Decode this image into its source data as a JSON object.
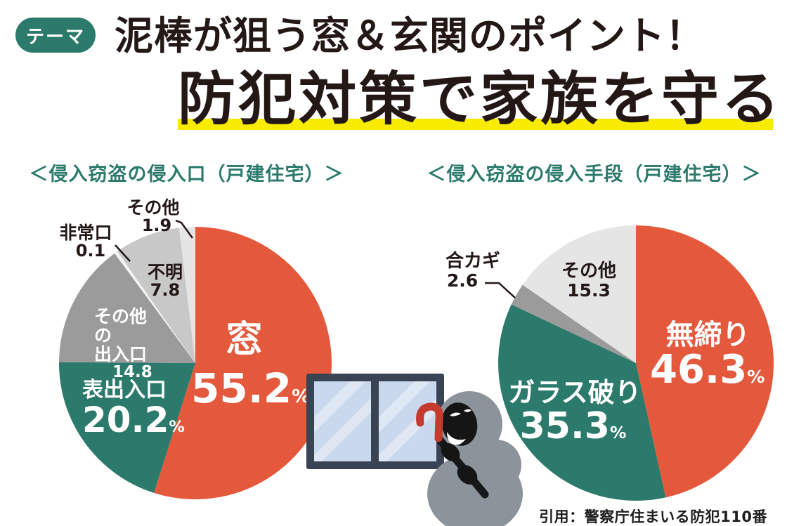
{
  "badge": {
    "label": "テーマ"
  },
  "title": {
    "line1": "泥棒が狙う窓＆玄関のポイント！",
    "line2": "防犯対策で家族を守る"
  },
  "ui": {
    "percent_sign": "%"
  },
  "colors": {
    "accent_teal": "#2B7A6C",
    "accent_red": "#E4583C",
    "gray_medium": "#9B9B9C",
    "gray_light": "#C8C8C9",
    "gray_pale": "#E5E5E6",
    "sliver_white": "#F2F2F2",
    "underline_yellow": "#F7EC00",
    "ink": "#231815"
  },
  "chart_data": [
    {
      "type": "pie",
      "heading": "＜侵入窃盗の侵入口（戸建住宅）＞",
      "title": "侵入窃盗の侵入口（戸建住宅）",
      "unit": "percent",
      "start_angle": "12-oclock",
      "direction": "clockwise",
      "slices": [
        {
          "label": "窓",
          "value": 55.2,
          "color": "#E4583C"
        },
        {
          "label": "表出入口",
          "value": 20.2,
          "color": "#2B7A6C"
        },
        {
          "label": "その他の出入口",
          "label_lines": [
            "その他の",
            "出入口"
          ],
          "value": 14.8,
          "color": "#9B9B9C"
        },
        {
          "label": "非常口",
          "value": 0.1,
          "color": "#F2F2F2"
        },
        {
          "label": "不明",
          "value": 7.8,
          "color": "#C8C8C9"
        },
        {
          "label": "その他",
          "value": 1.9,
          "color": "#E5E5E6"
        }
      ]
    },
    {
      "type": "pie",
      "heading": "＜侵入窃盗の侵入手段（戸建住宅）＞",
      "title": "侵入窃盗の侵入手段（戸建住宅）",
      "unit": "percent",
      "start_angle": "12-oclock",
      "direction": "clockwise",
      "slices": [
        {
          "label": "無締り",
          "value": 46.3,
          "color": "#E4583C"
        },
        {
          "label": "ガラス破り",
          "value": 35.3,
          "color": "#2B7A6C"
        },
        {
          "label": "合カギ",
          "value": 2.6,
          "color": "#9B9B9C"
        },
        {
          "label": "その他",
          "value": 15.3,
          "color": "#E5E5E6"
        }
      ]
    }
  ],
  "illustrations": {
    "window": "window-illustration",
    "burglar": "burglar-with-crowbar-illustration"
  },
  "footer": {
    "citation": "引用：警察庁住まいる防犯110番"
  }
}
